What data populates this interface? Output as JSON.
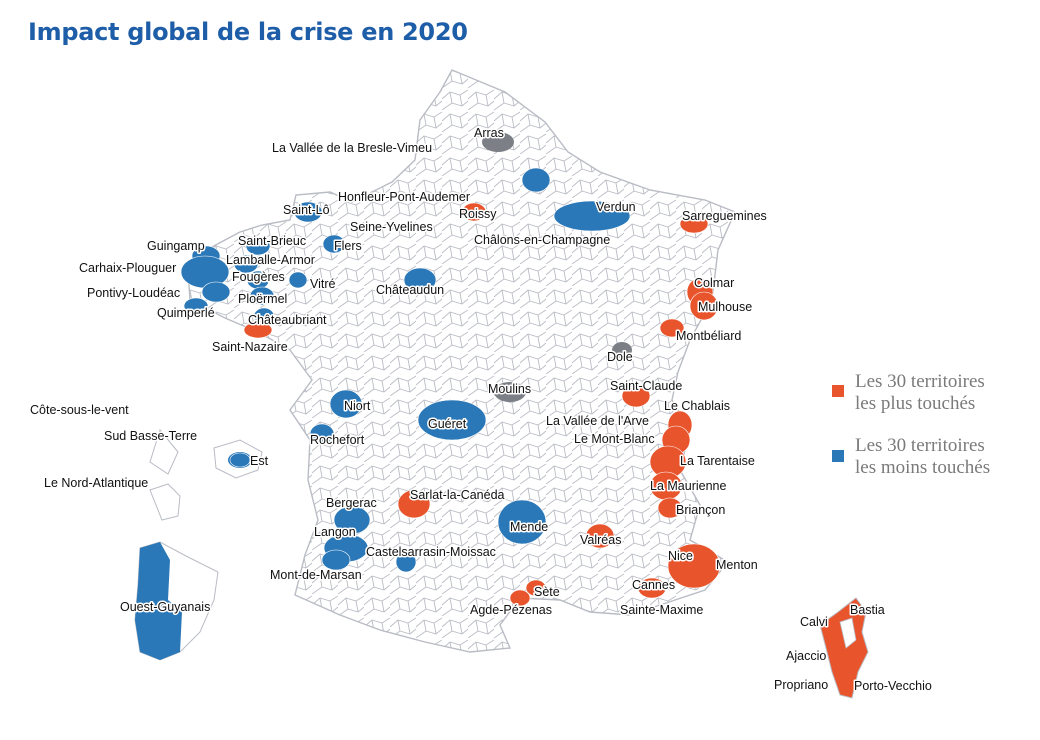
{
  "title": "Impact global de la crise en 2020",
  "colors": {
    "most_affected": "#e8542c",
    "least_affected": "#2b78b8",
    "territory_border": "#b9bcc4",
    "other_zone": "#7c8086",
    "title": "#1e5ea8"
  },
  "legend": {
    "most": "Les 30 territoires les plus touchés",
    "least": "Les 30 territoires les moins touchés"
  },
  "labels": [
    {
      "id": "arras",
      "text": "Arras",
      "cat": "other"
    },
    {
      "id": "bresle",
      "text": "La Vallée de la Bresle-Vimeu",
      "cat": "other"
    },
    {
      "id": "honfleur",
      "text": "Honfleur-Pont-Audemer",
      "cat": "most"
    },
    {
      "id": "saintlo",
      "text": "Saint-Lô",
      "cat": "least"
    },
    {
      "id": "roissy",
      "text": "Roissy",
      "cat": "most"
    },
    {
      "id": "verdun",
      "text": "Verdun",
      "cat": "least"
    },
    {
      "id": "sarreguemines",
      "text": "Sarreguemines",
      "cat": "most"
    },
    {
      "id": "stbrieuc",
      "text": "Saint-Brieuc",
      "cat": "least"
    },
    {
      "id": "seineyvelines",
      "text": "Seine-Yvelines",
      "cat": "most"
    },
    {
      "id": "chalons",
      "text": "Châlons-en-Champagne",
      "cat": "least"
    },
    {
      "id": "guingamp",
      "text": "Guingamp",
      "cat": "least"
    },
    {
      "id": "flers",
      "text": "Flers",
      "cat": "least"
    },
    {
      "id": "carhaix",
      "text": "Carhaix-Plouguer",
      "cat": "least"
    },
    {
      "id": "lamballe",
      "text": "Lamballe-Armor",
      "cat": "least"
    },
    {
      "id": "fougeres",
      "text": "Fougères",
      "cat": "least"
    },
    {
      "id": "vitre",
      "text": "Vitré",
      "cat": "least"
    },
    {
      "id": "chateaudun",
      "text": "Châteaudun",
      "cat": "least"
    },
    {
      "id": "pontivy",
      "text": "Pontivy-Loudéac",
      "cat": "least"
    },
    {
      "id": "ploermel",
      "text": "Ploërmel",
      "cat": "least"
    },
    {
      "id": "quimperle",
      "text": "Quimperlé",
      "cat": "least"
    },
    {
      "id": "chateaubriant",
      "text": "Châteaubriant",
      "cat": "least"
    },
    {
      "id": "colmar",
      "text": "Colmar",
      "cat": "most"
    },
    {
      "id": "mulhouse",
      "text": "Mulhouse",
      "cat": "most"
    },
    {
      "id": "stnazaire",
      "text": "Saint-Nazaire",
      "cat": "most"
    },
    {
      "id": "montbeliard",
      "text": "Montbéliard",
      "cat": "most"
    },
    {
      "id": "dole",
      "text": "Dole",
      "cat": "other"
    },
    {
      "id": "stclaude",
      "text": "Saint-Claude",
      "cat": "most"
    },
    {
      "id": "moulins",
      "text": "Moulins",
      "cat": "other"
    },
    {
      "id": "lechablais",
      "text": "Le Chablais",
      "cat": "most"
    },
    {
      "id": "cotesousvent",
      "text": "Côte-sous-le-vent",
      "cat": "least"
    },
    {
      "id": "niort",
      "text": "Niort",
      "cat": "least"
    },
    {
      "id": "valleearve",
      "text": "La Vallée de l'Arve",
      "cat": "most"
    },
    {
      "id": "gueret",
      "text": "Guéret",
      "cat": "least"
    },
    {
      "id": "montblanc",
      "text": "Le Mont-Blanc",
      "cat": "most"
    },
    {
      "id": "sudbasseterre",
      "text": "Sud Basse-Terre",
      "cat": "least"
    },
    {
      "id": "rochefort",
      "text": "Rochefort",
      "cat": "least"
    },
    {
      "id": "tarentaise",
      "text": "La Tarentaise",
      "cat": "most"
    },
    {
      "id": "est",
      "text": "Est",
      "cat": "least"
    },
    {
      "id": "nordatlantique",
      "text": "Le Nord-Atlantique",
      "cat": "least"
    },
    {
      "id": "maurienne",
      "text": "La Maurienne",
      "cat": "most"
    },
    {
      "id": "bergerac",
      "text": "Bergerac",
      "cat": "least"
    },
    {
      "id": "sarlat",
      "text": "Sarlat-la-Canéda",
      "cat": "most"
    },
    {
      "id": "briancon",
      "text": "Briançon",
      "cat": "most"
    },
    {
      "id": "mende",
      "text": "Mende",
      "cat": "least"
    },
    {
      "id": "langon",
      "text": "Langon",
      "cat": "least"
    },
    {
      "id": "valreas",
      "text": "Valréas",
      "cat": "most"
    },
    {
      "id": "castelsarrasin",
      "text": "Castelsarrasin-Moissac",
      "cat": "least"
    },
    {
      "id": "nice",
      "text": "Nice",
      "cat": "most"
    },
    {
      "id": "menton",
      "text": "Menton",
      "cat": "most"
    },
    {
      "id": "montdemarsan",
      "text": "Mont-de-Marsan",
      "cat": "least"
    },
    {
      "id": "cannes",
      "text": "Cannes",
      "cat": "most"
    },
    {
      "id": "sete",
      "text": "Sète",
      "cat": "most"
    },
    {
      "id": "ouestguyane",
      "text": "Ouest-Guyanais",
      "cat": "least"
    },
    {
      "id": "agde",
      "text": "Agde-Pézenas",
      "cat": "most"
    },
    {
      "id": "saintemaxime",
      "text": "Sainte-Maxime",
      "cat": "most"
    },
    {
      "id": "bastia",
      "text": "Bastia",
      "cat": "most"
    },
    {
      "id": "calvi",
      "text": "Calvi",
      "cat": "most"
    },
    {
      "id": "ajaccio",
      "text": "Ajaccio",
      "cat": "most"
    },
    {
      "id": "propriano",
      "text": "Propriano",
      "cat": "most"
    },
    {
      "id": "portovecchio",
      "text": "Porto-Vecchio",
      "cat": "most"
    }
  ]
}
